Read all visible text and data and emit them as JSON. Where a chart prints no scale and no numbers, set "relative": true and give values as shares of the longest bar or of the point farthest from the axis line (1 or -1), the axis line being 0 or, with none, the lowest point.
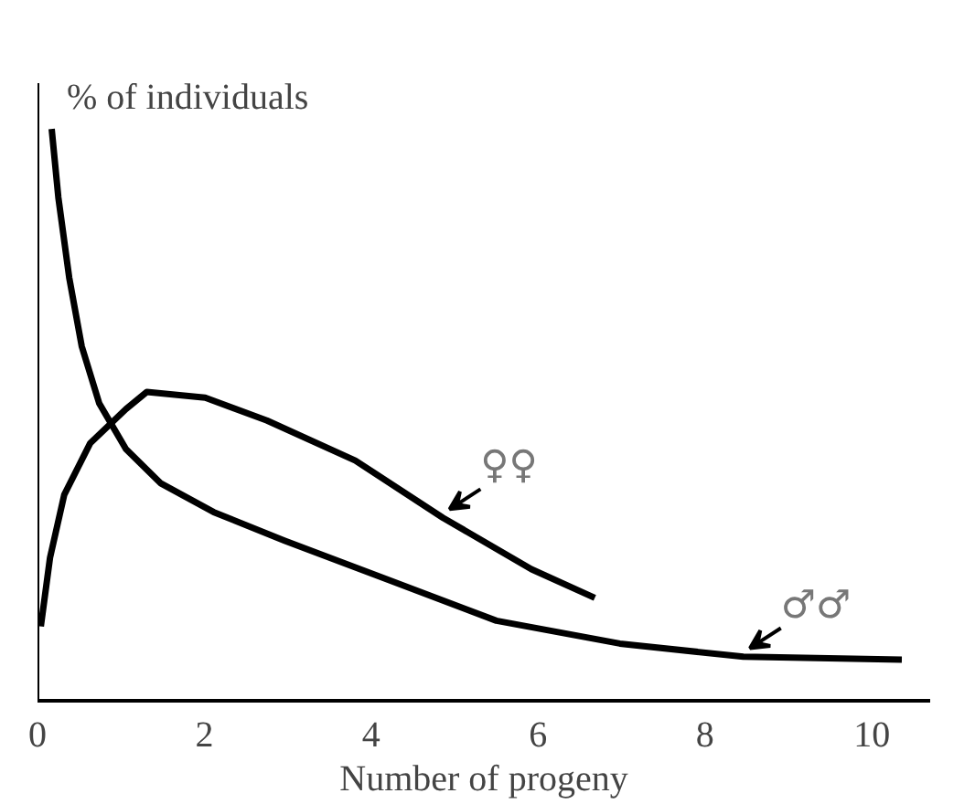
{
  "chart_data": {
    "type": "line",
    "relative": true,
    "xlabel": "Number of progeny",
    "ylabel": "% of individuals",
    "xlim": [
      0,
      10.7
    ],
    "xticks": [
      0,
      2,
      4,
      6,
      8,
      10
    ],
    "grid": false,
    "marker": "none",
    "line_style": "solid",
    "series": [
      {
        "name": "♀♀",
        "color": "#000000",
        "x": [
          0.04,
          0.15,
          0.32,
          0.63,
          1.06,
          1.31,
          2.01,
          2.75,
          3.81,
          4.86,
          5.92,
          6.68
        ],
        "values": [
          0.13,
          0.25,
          0.36,
          0.45,
          0.51,
          0.54,
          0.53,
          0.49,
          0.42,
          0.32,
          0.23,
          0.18
        ]
      },
      {
        "name": "♂♂",
        "color": "#000000",
        "x": [
          0.17,
          0.25,
          0.38,
          0.53,
          0.74,
          1.06,
          1.48,
          2.11,
          2.96,
          4.23,
          5.5,
          6.98,
          8.46,
          10.36
        ],
        "values": [
          1.0,
          0.88,
          0.74,
          0.62,
          0.52,
          0.44,
          0.38,
          0.33,
          0.28,
          0.21,
          0.14,
          0.1,
          0.077,
          0.072
        ]
      }
    ]
  }
}
